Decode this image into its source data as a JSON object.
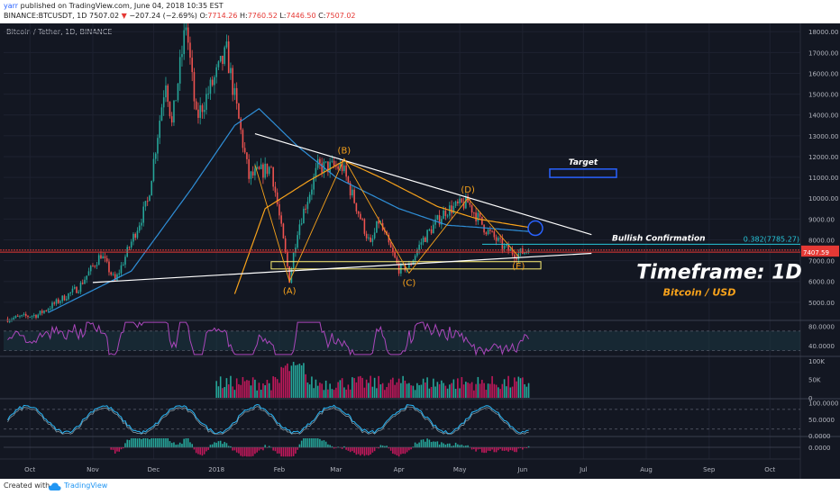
{
  "header": {
    "user": "yarr",
    "published": "published on TradingView.com, June 04, 2018 10:35 EST",
    "symbol": "BINANCE:BTCUSDT, 1D",
    "price": "7507.02",
    "arrow": "▼",
    "change": "−207.24 (−2.69%)",
    "o_label": "O:",
    "o": "7714.26",
    "h_label": "H:",
    "h": "7760.52",
    "l_label": "L:",
    "l": "7446.50",
    "c_label": "C:",
    "c": "7507.02"
  },
  "footer": {
    "created_with": "Created with",
    "brand": "TradingView",
    "logo_icon": "tradingview-cloud-icon"
  },
  "colors": {
    "background": "#131722",
    "up": "#26a69a",
    "down": "#ef5350",
    "ma_blue": "#2f8fd8",
    "ma_orange": "#f7a21b",
    "rsi": "#ab47bc",
    "volume_up": "#26a69a",
    "volume_down": "#c2185b",
    "hline_red": "#e53935",
    "target_box": "#2962ff",
    "support_box": "#fff176"
  },
  "chart_data": {
    "type": "candlestick",
    "title": "Bitcoin / Tether, 1D, BINANCE",
    "x_ticks": [
      "Oct",
      "Nov",
      "Dec",
      "2018",
      "Feb",
      "Mar",
      "Apr",
      "May",
      "Jun",
      "Jul",
      "Aug",
      "Sep",
      "Oct"
    ],
    "y_ticks": [
      "18000.00",
      "17000.00",
      "16000.00",
      "15000.00",
      "14000.00",
      "13000.00",
      "12000.00",
      "11000.00",
      "10000.00",
      "9000.00",
      "8000.00",
      "7000.00",
      "6000.00",
      "5000.00"
    ],
    "price_range": [
      4300,
      18400
    ],
    "price_labels": [
      "7507.02",
      "7407.59"
    ],
    "anchors": [
      {
        "date": "2017-09-20",
        "price": 4200
      },
      {
        "date": "2017-10-05",
        "price": 4400
      },
      {
        "date": "2017-10-25",
        "price": 5700
      },
      {
        "date": "2017-11-05",
        "price": 7300
      },
      {
        "date": "2017-11-12",
        "price": 6000
      },
      {
        "date": "2017-11-28",
        "price": 9800
      },
      {
        "date": "2017-12-07",
        "price": 15800
      },
      {
        "date": "2017-12-10",
        "price": 13500
      },
      {
        "date": "2017-12-17",
        "price": 18400
      },
      {
        "date": "2017-12-22",
        "price": 13800
      },
      {
        "date": "2018-01-06",
        "price": 17000
      },
      {
        "date": "2018-01-17",
        "price": 11000
      },
      {
        "date": "2018-01-28",
        "price": 11500
      },
      {
        "date": "2018-02-06",
        "price": 6100
      },
      {
        "date": "2018-02-10",
        "price": 8500
      },
      {
        "date": "2018-02-20",
        "price": 11500
      },
      {
        "date": "2018-03-04",
        "price": 11500
      },
      {
        "date": "2018-03-18",
        "price": 7700
      },
      {
        "date": "2018-03-22",
        "price": 8900
      },
      {
        "date": "2018-04-01",
        "price": 6600
      },
      {
        "date": "2018-04-06",
        "price": 6700
      },
      {
        "date": "2018-04-12",
        "price": 7900
      },
      {
        "date": "2018-04-24",
        "price": 9400
      },
      {
        "date": "2018-05-05",
        "price": 9800
      },
      {
        "date": "2018-05-13",
        "price": 8600
      },
      {
        "date": "2018-05-23",
        "price": 7600
      },
      {
        "date": "2018-05-29",
        "price": 7300
      },
      {
        "date": "2018-06-04",
        "price": 7507
      }
    ],
    "ma_blue_anchors": [
      {
        "date": "2017-10-10",
        "price": 4500
      },
      {
        "date": "2017-11-20",
        "price": 6500
      },
      {
        "date": "2017-12-20",
        "price": 10500
      },
      {
        "date": "2018-01-10",
        "price": 13500
      },
      {
        "date": "2018-01-22",
        "price": 14300
      },
      {
        "date": "2018-02-10",
        "price": 12500
      },
      {
        "date": "2018-03-01",
        "price": 11000
      },
      {
        "date": "2018-04-01",
        "price": 9500
      },
      {
        "date": "2018-04-25",
        "price": 8700
      },
      {
        "date": "2018-05-10",
        "price": 8600
      },
      {
        "date": "2018-06-04",
        "price": 8400
      }
    ],
    "ma_orange_anchors": [
      {
        "date": "2018-01-10",
        "price": 5400
      },
      {
        "date": "2018-01-25",
        "price": 9500
      },
      {
        "date": "2018-02-15",
        "price": 10800
      },
      {
        "date": "2018-03-05",
        "price": 11800
      },
      {
        "date": "2018-03-25",
        "price": 10900
      },
      {
        "date": "2018-04-20",
        "price": 9600
      },
      {
        "date": "2018-05-10",
        "price": 9000
      },
      {
        "date": "2018-06-04",
        "price": 8600
      }
    ],
    "annotations": {
      "waves": [
        {
          "label": "(A)",
          "date": "2018-02-06",
          "price": 6000
        },
        {
          "label": "(B)",
          "date": "2018-03-05",
          "price": 11900
        },
        {
          "label": "(C)",
          "date": "2018-04-06",
          "price": 6400
        },
        {
          "label": "(D)",
          "date": "2018-05-05",
          "price": 10000
        },
        {
          "label": "(E)",
          "date": "2018-05-30",
          "price": 7200
        }
      ],
      "target_label": "Target",
      "target_zone": [
        11000,
        11400
      ],
      "bullish_confirmation": "Bullish Confirmation",
      "fib_label": "0.382(7785.27)",
      "timeframe": "Timeframe: 1D",
      "subtitle": "Bitcoin / USD"
    },
    "rsi": {
      "levels": [
        70,
        30
      ],
      "y_ticks": [
        "80.0000",
        "40.0000"
      ]
    },
    "volume": {
      "y_ticks": [
        "100K",
        "50K",
        "0"
      ]
    },
    "stoch": {
      "y_ticks": [
        "100.0000",
        "50.0000",
        "0.0000"
      ]
    },
    "macd": {
      "y_ticks": [
        "0.0000"
      ]
    }
  }
}
